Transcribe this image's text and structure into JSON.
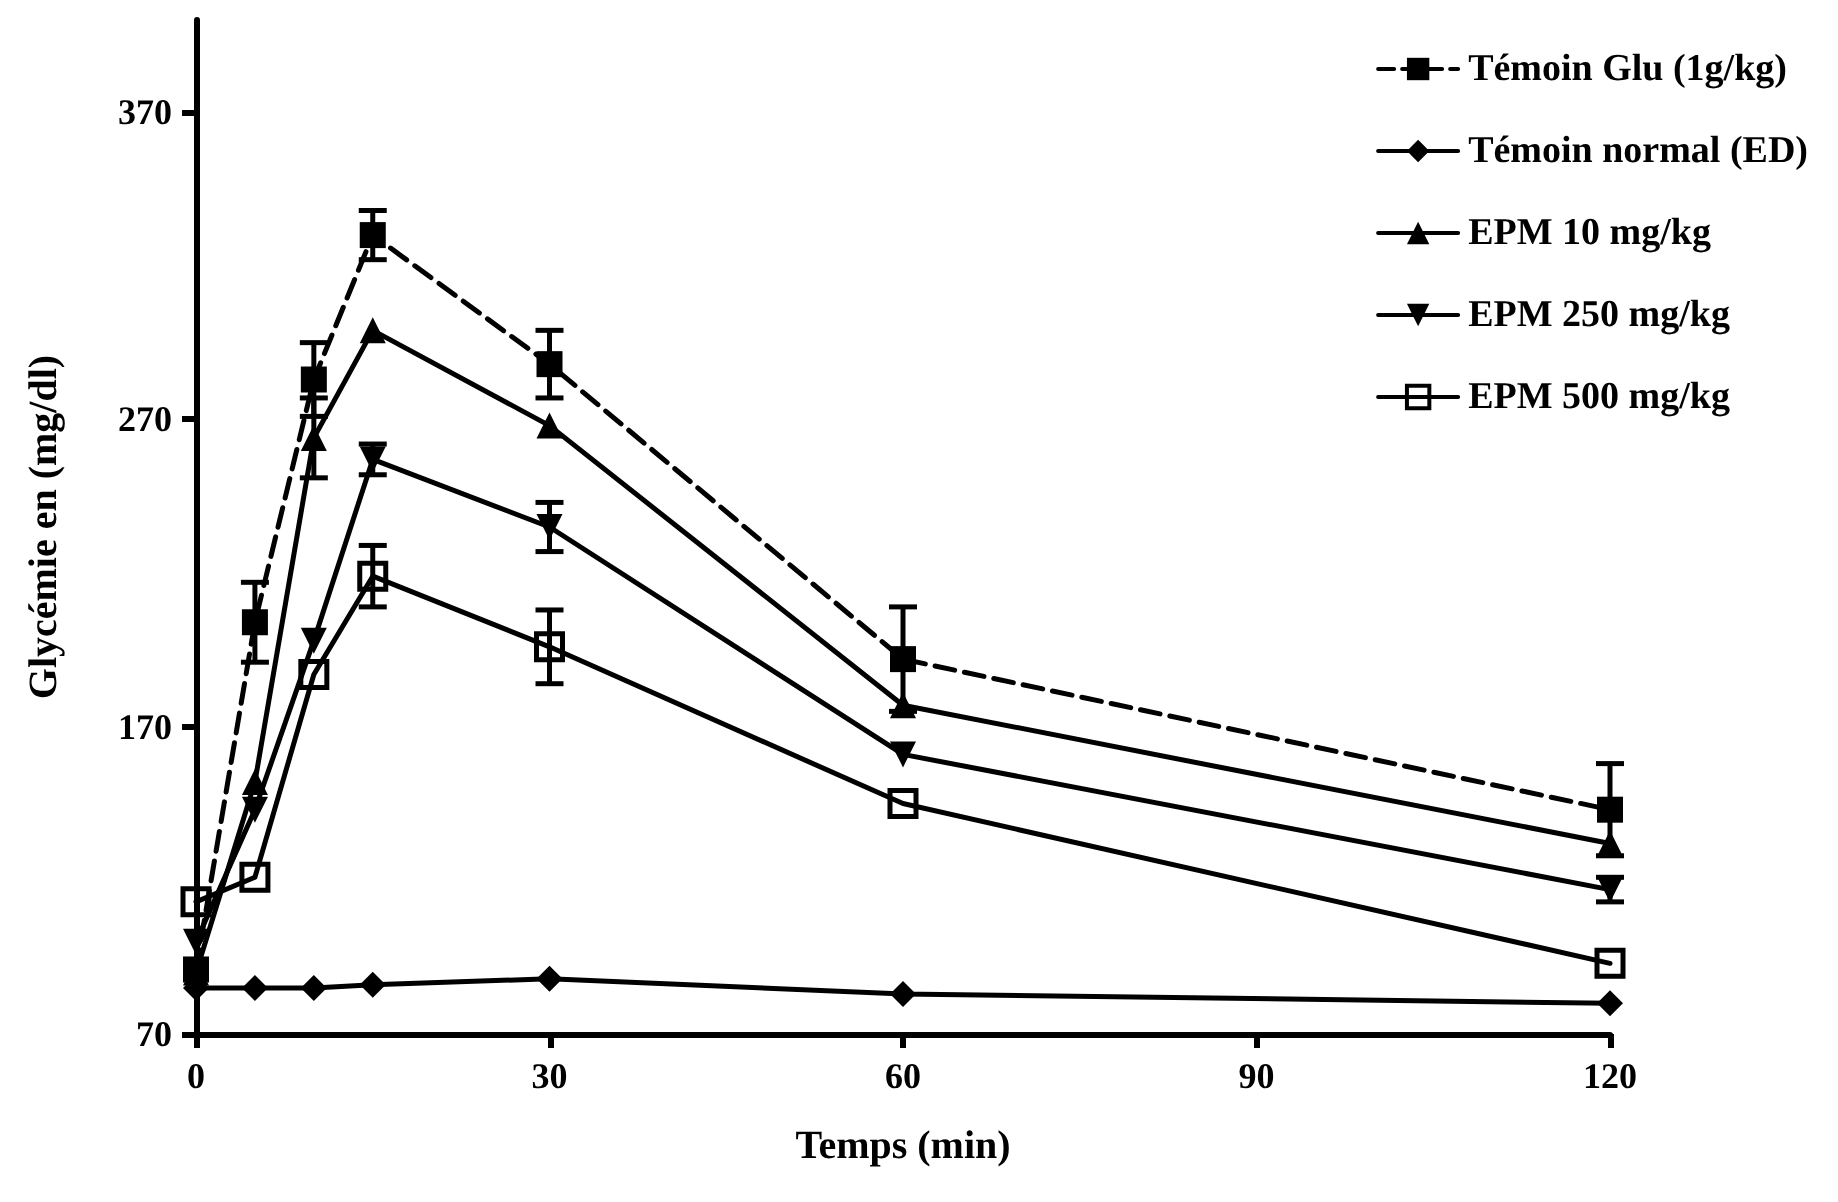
{
  "chart_data": {
    "type": "line",
    "xlabel": "Temps (min)",
    "ylabel": "Glycémie en (mg/dl)",
    "x": [
      0,
      5,
      10,
      15,
      30,
      60,
      120
    ],
    "xlim": [
      0,
      120
    ],
    "xticks": [
      0,
      30,
      60,
      90,
      120
    ],
    "ylim": [
      70,
      400
    ],
    "yticks": [
      70,
      170,
      270,
      370
    ],
    "grid": false,
    "legend": "top right",
    "series": [
      {
        "name": "Témoin Glu (1g/kg)",
        "color": "#000000",
        "marker": "square",
        "line_style": "dashed",
        "values": [
          91,
          204,
          283,
          330,
          288,
          192,
          143
        ],
        "errors": [
          null,
          13,
          12,
          8,
          11,
          17,
          15
        ]
      },
      {
        "name": "Témoin normal (ED)",
        "color": "#000000",
        "marker": "diamond",
        "line_style": "solid",
        "values": [
          85,
          85,
          85,
          86,
          88,
          83,
          80
        ]
      },
      {
        "name": "EPM 10 mg/kg",
        "color": "#000000",
        "marker": "triangle",
        "line_style": "solid",
        "values": [
          90,
          152,
          264,
          299,
          268,
          177,
          132
        ],
        "errors": [
          null,
          null,
          13,
          null,
          null,
          null,
          null
        ]
      },
      {
        "name": "EPM 250 mg/kg",
        "color": "#000000",
        "marker": "triangle-down",
        "line_style": "solid",
        "values": [
          100,
          143,
          198,
          257,
          235,
          161,
          117
        ],
        "errors": [
          null,
          null,
          null,
          5,
          8,
          null,
          4
        ]
      },
      {
        "name": "EPM 500 mg/kg",
        "color": "#000000",
        "marker": "square-open",
        "line_style": "solid",
        "values": [
          113,
          121,
          187,
          219,
          196,
          145,
          93
        ],
        "errors": [
          null,
          null,
          null,
          10,
          12,
          null,
          null
        ]
      }
    ]
  }
}
